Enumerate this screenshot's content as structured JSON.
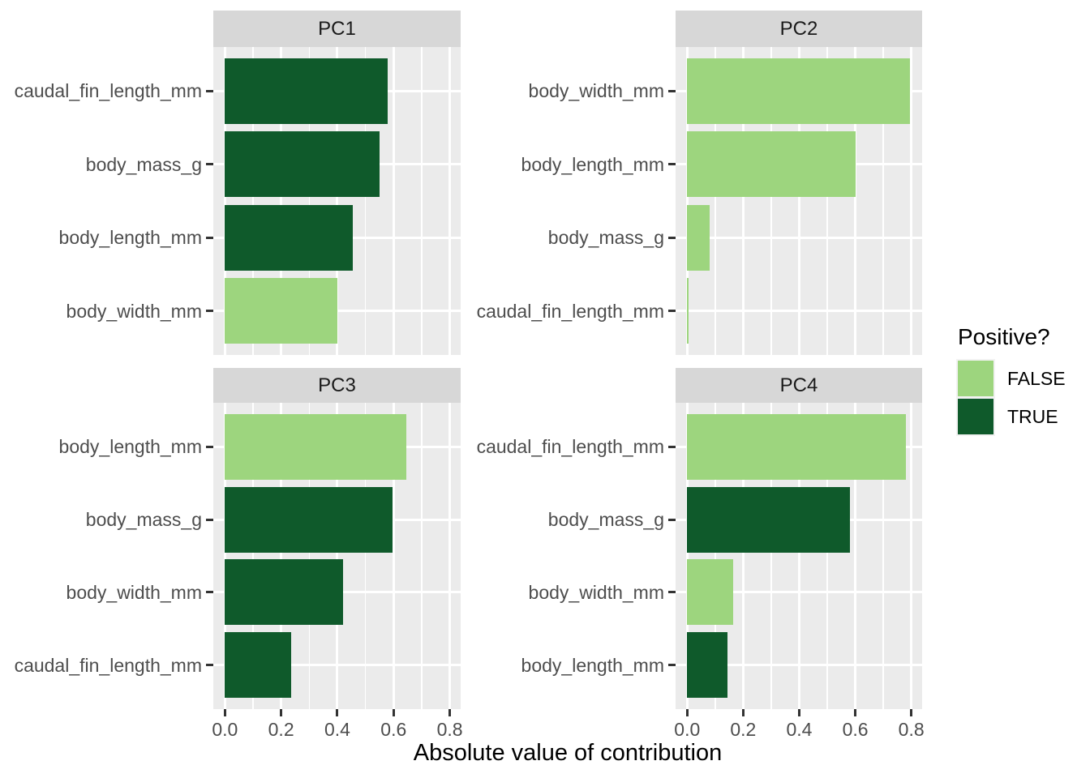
{
  "chart_data": {
    "type": "bar",
    "orientation": "horizontal",
    "title": "",
    "xlabel": "Absolute value of contribution",
    "ylabel": "",
    "xlim": [
      0,
      0.8
    ],
    "x_ticks": {
      "values": [
        0,
        0.2,
        0.4,
        0.6,
        0.8
      ],
      "labels": [
        "0.0",
        "0.2",
        "0.4",
        "0.6",
        "0.8"
      ]
    },
    "grid": "white major and minor vertical gridlines plus major horizontal gridlines on grey panel",
    "facets": [
      {
        "title": "PC1",
        "bars": [
          {
            "label": "caudal_fin_length_mm",
            "value": 0.58,
            "positive": true
          },
          {
            "label": "body_mass_g",
            "value": 0.55,
            "positive": true
          },
          {
            "label": "body_length_mm",
            "value": 0.455,
            "positive": true
          },
          {
            "label": "body_width_mm",
            "value": 0.4,
            "positive": false
          }
        ]
      },
      {
        "title": "PC2",
        "bars": [
          {
            "label": "body_width_mm",
            "value": 0.795,
            "positive": false
          },
          {
            "label": "body_length_mm",
            "value": 0.6,
            "positive": false
          },
          {
            "label": "body_mass_g",
            "value": 0.08,
            "positive": false
          },
          {
            "label": "caudal_fin_length_mm",
            "value": 0.005,
            "positive": false
          }
        ]
      },
      {
        "title": "PC3",
        "bars": [
          {
            "label": "body_length_mm",
            "value": 0.645,
            "positive": false
          },
          {
            "label": "body_mass_g",
            "value": 0.595,
            "positive": true
          },
          {
            "label": "body_width_mm",
            "value": 0.42,
            "positive": true
          },
          {
            "label": "caudal_fin_length_mm",
            "value": 0.235,
            "positive": true
          }
        ]
      },
      {
        "title": "PC4",
        "bars": [
          {
            "label": "caudal_fin_length_mm",
            "value": 0.78,
            "positive": false
          },
          {
            "label": "body_mass_g",
            "value": 0.58,
            "positive": true
          },
          {
            "label": "body_width_mm",
            "value": 0.165,
            "positive": false
          },
          {
            "label": "body_length_mm",
            "value": 0.145,
            "positive": true
          }
        ]
      }
    ],
    "colors": {
      "FALSE": "#9DD57E",
      "TRUE": "#0F5A2B"
    },
    "legend": {
      "title": "Positive?",
      "position": "right",
      "items": [
        {
          "label": "FALSE",
          "color_key": "FALSE"
        },
        {
          "label": "TRUE",
          "color_key": "TRUE"
        }
      ]
    }
  },
  "theme": {
    "panel_bg": "#EBEBEB",
    "strip_bg": "#D7D7D7",
    "grid_color": "#FFFFFF",
    "tick_color": "#333333",
    "axis_text_color": "#4D4D4D",
    "strip_text_color": "#1A1A1A",
    "title_color": "#000000",
    "legend_key_bg": "#F2F2F2"
  }
}
